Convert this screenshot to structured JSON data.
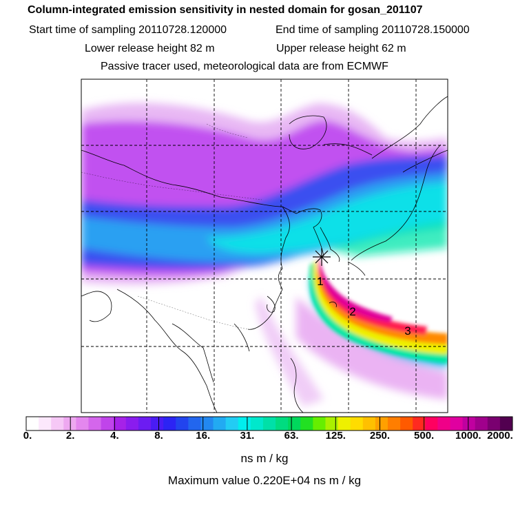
{
  "header": {
    "title": "Column-integrated emission sensitivity in nested domain for gosan_201107",
    "start_label": "Start time of sampling 20110728.120000",
    "end_label": "End time of sampling 20110728.150000",
    "lower_label": "Lower release height   82 m",
    "upper_label": "Upper release height   62 m",
    "tracer_label": "Passive tracer used, meteorological data are from ECMWF"
  },
  "map": {
    "site_marker": "star-icon",
    "time_markers": [
      "1",
      "2",
      "3"
    ]
  },
  "colorbar": {
    "tick_labels": [
      "0.",
      "2.",
      "4.",
      "8.",
      "16.",
      "31.",
      "63.",
      "125.",
      "250.",
      "500.",
      "1000.",
      "2000."
    ],
    "colors": [
      "#ffffff",
      "#fce8fc",
      "#f6c8f6",
      "#eea8f0",
      "#e487ee",
      "#d466ec",
      "#c044ea",
      "#a622e8",
      "#8a1cee",
      "#6c1cf2",
      "#4a1cf4",
      "#2c24f4",
      "#2244ee",
      "#2266ee",
      "#2288f0",
      "#22aaf2",
      "#22ccf4",
      "#00eeee",
      "#00e8cc",
      "#00e0a8",
      "#00dc80",
      "#00d85c",
      "#22e022",
      "#66ee00",
      "#aaf000",
      "#eef000",
      "#ffdc00",
      "#ffc000",
      "#ffa000",
      "#ff7e00",
      "#ff5a00",
      "#ff2a20",
      "#ff0060",
      "#f00088",
      "#e000a0",
      "#c000a0",
      "#a0008c",
      "#7a0070",
      "#520050"
    ],
    "unit": "ns m / kg",
    "maximum": "Maximum value  0.220E+04 ns m / kg"
  }
}
